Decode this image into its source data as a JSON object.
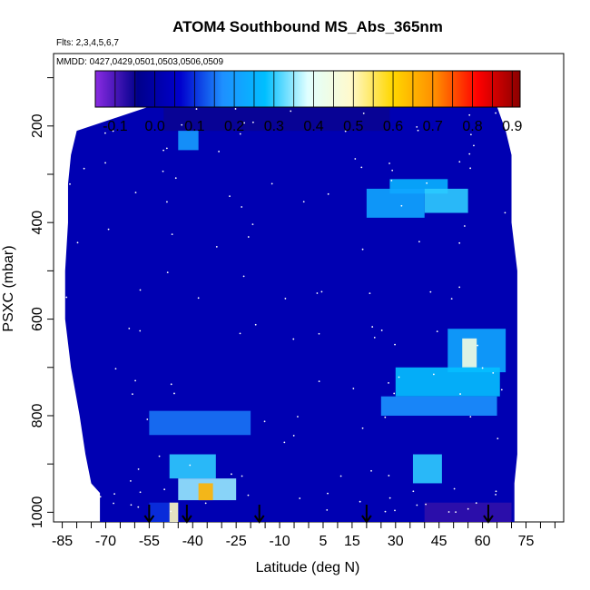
{
  "chart_data": {
    "type": "heatmap",
    "title": "ATOM4 Southbound MS_Abs_365nm",
    "flights_note": "Flts: 2,3,4,5,6,7",
    "dates_note": "MMDD: 0427,0429,0501,0503,0506,0509",
    "xlabel": "Latitude (deg N)",
    "ylabel": "PSXC (mbar)",
    "xlim": [
      -88,
      88
    ],
    "ylim": [
      1020,
      50
    ],
    "x_ticks": [
      -85,
      -70,
      -55,
      -40,
      -25,
      -10,
      5,
      15,
      30,
      45,
      60,
      75
    ],
    "x_tick_labels": [
      "-85",
      "-70",
      "-55",
      "-40",
      "-25",
      "-10",
      "5",
      "15",
      "30",
      "45",
      "60",
      "75"
    ],
    "y_ticks": [
      200,
      400,
      600,
      800,
      1000
    ],
    "y_tick_labels": [
      "200",
      "400",
      "600",
      "800",
      "1000"
    ],
    "colorbar": {
      "range": [
        -0.15,
        0.92
      ],
      "ticks": [
        -0.1,
        0.0,
        0.1,
        0.2,
        0.3,
        0.4,
        0.5,
        0.6,
        0.7,
        0.8,
        0.9
      ],
      "tick_labels": [
        "-0.1",
        "0.0",
        "0.1",
        "0.2",
        "0.3",
        "0.4",
        "0.5",
        "0.6",
        "0.7",
        "0.8",
        "0.9"
      ],
      "colors": [
        "#8a2be2",
        "#00008b",
        "#0000cd",
        "#1e90ff",
        "#00bfff",
        "#e0ffff",
        "#fffacd",
        "#ffd700",
        "#ff8c00",
        "#ff0000",
        "#8b0000"
      ]
    },
    "background_value": 0.02,
    "coverage": [
      {
        "p": 160,
        "lat": [
          -55,
          65
        ]
      },
      {
        "p": 210,
        "lat": [
          -80,
          68
        ]
      },
      {
        "p": 260,
        "lat": [
          -82,
          70
        ]
      },
      {
        "p": 320,
        "lat": [
          -83,
          70
        ]
      },
      {
        "p": 400,
        "lat": [
          -83,
          70
        ]
      },
      {
        "p": 500,
        "lat": [
          -84,
          72
        ]
      },
      {
        "p": 600,
        "lat": [
          -84,
          72
        ]
      },
      {
        "p": 700,
        "lat": [
          -82,
          72
        ]
      },
      {
        "p": 800,
        "lat": [
          -79,
          72
        ]
      },
      {
        "p": 880,
        "lat": [
          -77,
          72
        ]
      },
      {
        "p": 940,
        "lat": [
          -75,
          71
        ]
      },
      {
        "p": 960,
        "lat": [
          -72,
          71
        ]
      }
    ],
    "features": [
      {
        "lat": [
          -50,
          28
        ],
        "p": [
          160,
          210
        ],
        "value": -0.05
      },
      {
        "lat": [
          -45,
          -38
        ],
        "p": [
          210,
          250
        ],
        "value": 0.2
      },
      {
        "lat": [
          28,
          48
        ],
        "p": [
          310,
          340
        ],
        "value": 0.25
      },
      {
        "lat": [
          40,
          55
        ],
        "p": [
          330,
          380
        ],
        "value": 0.3
      },
      {
        "lat": [
          20,
          40
        ],
        "p": [
          330,
          390
        ],
        "value": 0.22
      },
      {
        "lat": [
          48,
          68
        ],
        "p": [
          620,
          710
        ],
        "value": 0.22
      },
      {
        "lat": [
          53,
          58
        ],
        "p": [
          640,
          700
        ],
        "value": 0.45
      },
      {
        "lat": [
          30,
          66
        ],
        "p": [
          700,
          760
        ],
        "value": 0.28
      },
      {
        "lat": [
          25,
          65
        ],
        "p": [
          760,
          800
        ],
        "value": 0.18
      },
      {
        "lat": [
          -55,
          -20
        ],
        "p": [
          790,
          840
        ],
        "value": 0.15
      },
      {
        "lat": [
          -48,
          -32
        ],
        "p": [
          880,
          930
        ],
        "value": 0.3
      },
      {
        "lat": [
          -45,
          -25
        ],
        "p": [
          930,
          975
        ],
        "value": 0.35
      },
      {
        "lat": [
          -38,
          -33
        ],
        "p": [
          940,
          975
        ],
        "value": 0.65
      },
      {
        "lat": [
          36,
          46
        ],
        "p": [
          880,
          940
        ],
        "value": 0.3
      },
      {
        "lat": [
          -55,
          -45
        ],
        "p": [
          980,
          1020
        ],
        "value": 0.1
      },
      {
        "lat": [
          -48,
          -45
        ],
        "p": [
          980,
          1020
        ],
        "value": 0.5
      },
      {
        "lat": [
          40,
          70
        ],
        "p": [
          980,
          1020
        ],
        "value": -0.08
      }
    ],
    "markers": {
      "type": "down-arrow",
      "latitudes": [
        -55,
        -42,
        -17,
        20,
        62
      ]
    }
  }
}
